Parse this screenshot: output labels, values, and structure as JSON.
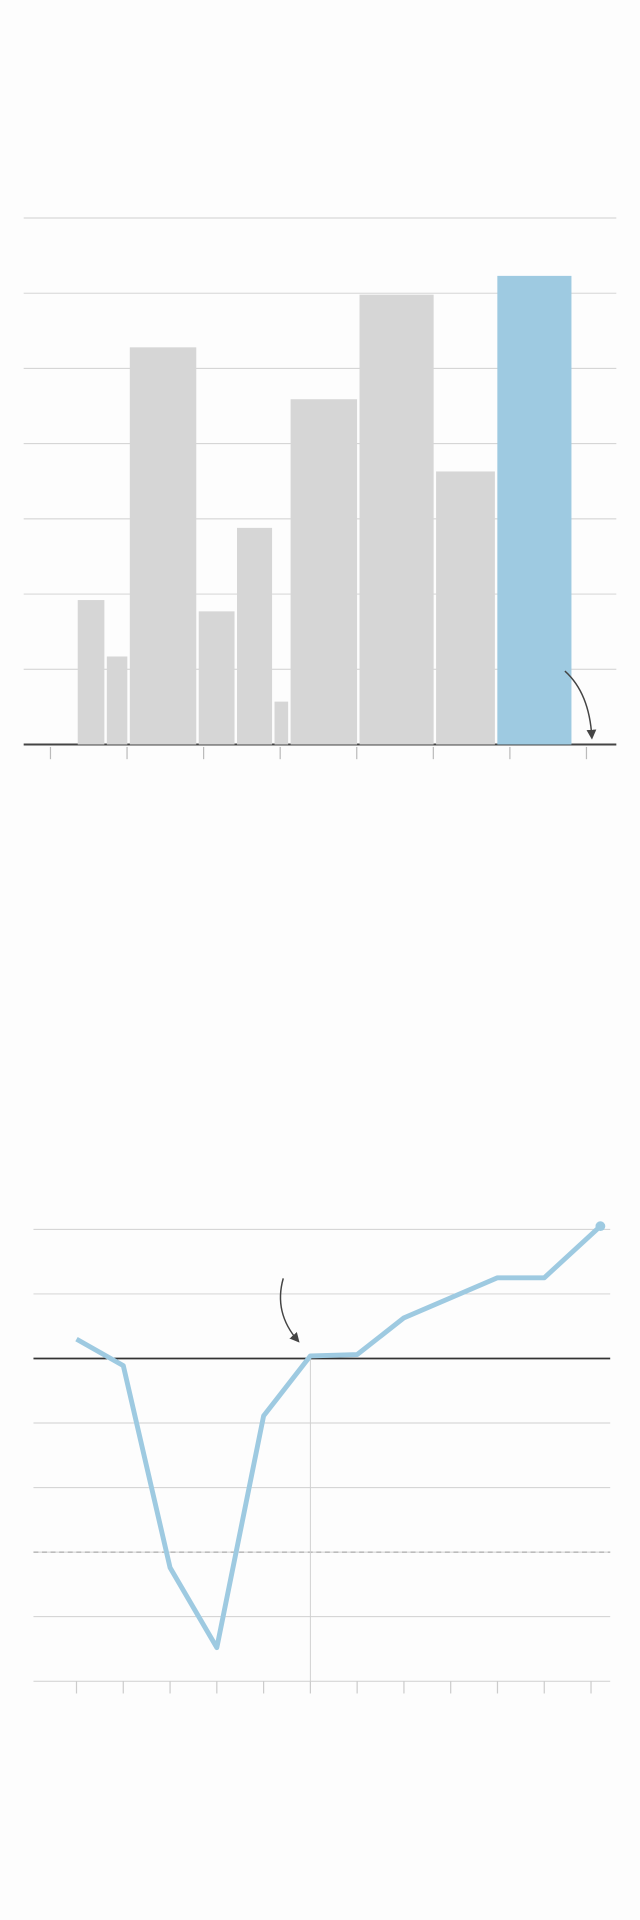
{
  "chart_data": [
    {
      "type": "histogram",
      "bins": [
        0.34,
        0.72,
        1.02,
        1.92,
        2.42,
        2.91,
        3.12,
        4.02,
        5.02,
        5.82,
        6.82
      ],
      "values": [
        1.92,
        1.17,
        5.28,
        1.77,
        2.88,
        0.57,
        4.59,
        5.98,
        3.63,
        6.23
      ],
      "colors": [
        "#d6d6d6",
        "#d6d6d6",
        "#d6d6d6",
        "#d6d6d6",
        "#d6d6d6",
        "#d6d6d6",
        "#d6d6d6",
        "#d6d6d6",
        "#d6d6d6",
        "#9ecae1"
      ],
      "xlim": [
        -0.35,
        7.39
      ],
      "xticks": [
        0,
        1,
        2,
        3,
        4,
        5,
        6,
        7
      ],
      "ylim": [
        0,
        7
      ],
      "yticks": [
        0,
        1,
        2,
        3,
        4,
        5,
        6,
        7
      ],
      "grid": true
    },
    {
      "type": "line",
      "x": [
        0,
        1,
        2,
        3,
        4,
        5,
        6,
        7,
        9,
        10,
        11.2
      ],
      "series": [
        {
          "color": "#9ecae1",
          "values": [
            0.3,
            -0.11,
            -3.24,
            -4.48,
            -0.89,
            0.04,
            0.06,
            0.63,
            1.25,
            1.25,
            2.05
          ]
        }
      ],
      "xlim": [
        -0.92,
        11.41
      ],
      "xticks": [
        0,
        1,
        2,
        3,
        4,
        5,
        6,
        7,
        8,
        9,
        10,
        11
      ],
      "ylim": [
        -5,
        2
      ],
      "yticks": [
        -5,
        -4,
        -3,
        -2,
        -1,
        0,
        1,
        2
      ],
      "grid": true,
      "reference_line": -3,
      "vertical_line": 5
    }
  ]
}
